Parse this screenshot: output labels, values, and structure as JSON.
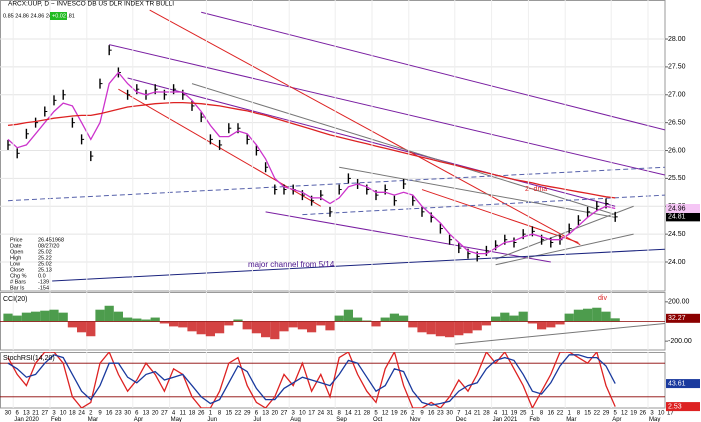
{
  "header": {
    "title": "ARCX:UUP, D ~ INVESCO DB US DLR INDEX TR BULLI",
    "quote": "0.85 24.86 24.86 24.81 24.81",
    "change": "+0.02"
  },
  "info_box": [
    [
      "Price",
      "26.451968"
    ],
    [
      "Date",
      "08/27/20"
    ],
    [
      "Open",
      "25.02"
    ],
    [
      "High",
      "25.22"
    ],
    [
      "Low",
      "25.02"
    ],
    [
      "Close",
      "25.13"
    ],
    [
      "Chg %",
      "0.0"
    ],
    [
      "# Bars",
      "-139"
    ],
    [
      "Bar Is",
      "-154"
    ]
  ],
  "chart_data": [
    {
      "type": "line",
      "categories": [
        "30",
        "6",
        "13",
        "21",
        "27",
        "3",
        "10",
        "18",
        "24",
        "2",
        "9",
        "16",
        "23",
        "30",
        "6",
        "13",
        "20",
        "27",
        "4",
        "11",
        "18",
        "26",
        "1",
        "8",
        "15",
        "22",
        "29",
        "6",
        "13",
        "20",
        "27",
        "3",
        "10",
        "17",
        "24",
        "31",
        "8",
        "14",
        "21",
        "28",
        "5",
        "12",
        "19",
        "26",
        "2",
        "9",
        "16",
        "23",
        "30",
        "7",
        "14",
        "21",
        "28",
        "4",
        "11",
        "19",
        "25",
        "1",
        "8",
        "16",
        "22",
        "1",
        "8",
        "15",
        "22",
        "29",
        "5",
        "12",
        "19",
        "26",
        "3",
        "10",
        "17"
      ],
      "months": [
        null,
        "Jan 2020",
        null,
        null,
        null,
        "Feb",
        null,
        null,
        null,
        "Mar",
        null,
        null,
        null,
        null,
        "Apr",
        null,
        null,
        null,
        "May",
        null,
        null,
        null,
        "Jun",
        null,
        null,
        null,
        null,
        "Jul",
        null,
        null,
        null,
        "Aug",
        null,
        null,
        null,
        null,
        "Sep",
        null,
        null,
        null,
        "Oct",
        null,
        null,
        null,
        "Nov",
        null,
        null,
        null,
        null,
        "Dec",
        null,
        null,
        null,
        "Jan 2021",
        null,
        null,
        null,
        "Feb",
        null,
        null,
        null,
        "Mar",
        null,
        null,
        null,
        null,
        "Apr",
        null,
        null,
        null,
        "May",
        null,
        null
      ],
      "series": [
        {
          "name": "Close",
          "color": "#000000",
          "style": "bars",
          "tag": true,
          "values": [
            26.1,
            25.95,
            26.3,
            26.5,
            26.7,
            26.9,
            27.0,
            26.5,
            26.2,
            25.9,
            27.2,
            27.8,
            27.4,
            27.0,
            27.1,
            27.0,
            27.1,
            27.0,
            27.1,
            27.0,
            26.8,
            26.6,
            26.2,
            26.1,
            26.4,
            26.4,
            26.2,
            26.0,
            25.7,
            25.3,
            25.3,
            25.3,
            25.2,
            25.1,
            25.2,
            24.9,
            25.3,
            25.5,
            25.4,
            25.3,
            25.2,
            25.3,
            25.1,
            25.4,
            25.1,
            24.9,
            24.8,
            24.6,
            24.4,
            24.25,
            24.15,
            24.1,
            24.2,
            24.3,
            24.4,
            24.35,
            24.5,
            24.55,
            24.4,
            24.35,
            24.4,
            24.6,
            24.75,
            24.9,
            25.0,
            25.05,
            24.81,
            null,
            null,
            null,
            null,
            null,
            null
          ]
        },
        {
          "name": "MA short",
          "color": "#cc33cc",
          "style": "line",
          "tag": true,
          "values": [
            26.2,
            26.05,
            26.1,
            26.3,
            26.5,
            26.7,
            26.85,
            26.8,
            26.5,
            26.2,
            26.5,
            27.2,
            27.4,
            27.2,
            27.05,
            27.0,
            27.05,
            27.05,
            27.05,
            27.05,
            26.9,
            26.7,
            26.45,
            26.25,
            26.25,
            26.35,
            26.3,
            26.1,
            25.85,
            25.5,
            25.35,
            25.3,
            25.25,
            25.15,
            25.15,
            25.05,
            25.15,
            25.35,
            25.4,
            25.35,
            25.25,
            25.25,
            25.2,
            25.25,
            25.2,
            25.0,
            24.85,
            24.7,
            24.5,
            24.35,
            24.2,
            24.15,
            24.15,
            24.25,
            24.35,
            24.38,
            24.45,
            24.5,
            24.45,
            24.4,
            24.4,
            24.5,
            24.65,
            24.8,
            24.92,
            25.0,
            24.96,
            null,
            null,
            null,
            null,
            null,
            null
          ]
        },
        {
          "name": "MA long",
          "color": "#dd2222",
          "style": "line",
          "tag": false,
          "values": [
            26.45,
            26.47,
            26.5,
            26.52,
            26.55,
            26.58,
            26.6,
            26.62,
            26.63,
            26.63,
            26.66,
            26.7,
            26.74,
            26.78,
            26.8,
            26.82,
            26.84,
            26.85,
            26.86,
            26.86,
            26.85,
            26.84,
            26.82,
            26.8,
            26.77,
            26.74,
            26.71,
            26.67,
            26.63,
            26.58,
            26.53,
            26.48,
            26.43,
            26.38,
            26.33,
            26.28,
            26.24,
            26.2,
            26.16,
            26.12,
            26.08,
            26.04,
            26.0,
            25.96,
            25.92,
            25.88,
            25.84,
            25.8,
            25.76,
            25.72,
            25.68,
            25.64,
            25.6,
            25.56,
            25.52,
            25.48,
            25.45,
            25.42,
            25.38,
            25.35,
            25.32,
            25.29,
            25.26,
            25.23,
            25.2,
            25.17,
            25.15,
            null,
            null,
            null,
            null,
            null,
            null
          ]
        }
      ],
      "ylim": [
        23.48,
        28.7
      ],
      "yticks": [
        {
          "value": 28,
          "label": "28.00"
        },
        {
          "value": 27.5,
          "label": "27.50"
        },
        {
          "value": 27,
          "label": "27.00"
        },
        {
          "value": 26.5,
          "label": "26.50"
        },
        {
          "value": 26,
          "label": "26.00"
        },
        {
          "value": 25.5,
          "label": "25.50"
        },
        {
          "value": 25,
          "label": "25.00"
        },
        {
          "value": 24.5,
          "label": "24.50"
        },
        {
          "value": 24,
          "label": "24.00"
        }
      ],
      "grid": true,
      "trendlines": [
        {
          "color": "#7a1fa2",
          "dashed": false,
          "points": [
            [
              21,
              28.48
            ],
            [
              71.4,
              26.37
            ]
          ]
        },
        {
          "color": "#7a1fa2",
          "dashed": false,
          "points": [
            [
              11,
              27.9
            ],
            [
              71.4,
              25.56
            ]
          ]
        },
        {
          "color": "#7a1fa2",
          "dashed": false,
          "points": [
            [
              13,
              27.3
            ],
            [
              66,
              25.0
            ]
          ]
        },
        {
          "color": "#7a1fa2",
          "dashed": false,
          "points": [
            [
              28,
              24.9
            ],
            [
              59,
              24.0
            ]
          ]
        },
        {
          "color": "#dd2222",
          "dashed": false,
          "points": [
            [
              15.4,
              28.52
            ],
            [
              62.2,
              24.31
            ]
          ]
        },
        {
          "color": "#dd2222",
          "dashed": false,
          "points": [
            [
              12,
              27.1
            ],
            [
              34,
              25.0
            ]
          ]
        },
        {
          "color": "#dd2222",
          "dashed": false,
          "points": [
            [
              45,
              25.3
            ],
            [
              62,
              24.35
            ]
          ]
        },
        {
          "color": "#777777",
          "dashed": false,
          "points": [
            [
              36,
              25.7
            ],
            [
              66,
              24.8
            ]
          ]
        },
        {
          "color": "#777777",
          "dashed": false,
          "points": [
            [
              20,
              27.2
            ],
            [
              66,
              24.85
            ]
          ]
        },
        {
          "color": "#777777",
          "dashed": false,
          "points": [
            [
              53,
              24.05
            ],
            [
              68,
              25.0
            ]
          ]
        },
        {
          "color": "#777777",
          "dashed": false,
          "points": [
            [
              53,
              23.95
            ],
            [
              68,
              24.5
            ]
          ]
        },
        {
          "color": "#5560aa",
          "dashed": true,
          "points": [
            [
              0,
              25.1
            ],
            [
              71.4,
              25.7
            ]
          ]
        },
        {
          "color": "#5560aa",
          "dashed": true,
          "points": [
            [
              32,
              24.85
            ],
            [
              71.4,
              25.2
            ]
          ]
        },
        {
          "color": "#1a237e",
          "dashed": false,
          "points": [
            [
              4.8,
              23.66
            ],
            [
              71.4,
              24.23
            ]
          ]
        }
      ],
      "annotations": [
        "major channel from 5/14",
        "2--dma"
      ]
    },
    {
      "type": "histogram",
      "title": "CCI(20)",
      "color_up": "#2e8b2e",
      "color_down": "#cc2222",
      "tag": true,
      "values": [
        80,
        60,
        90,
        100,
        110,
        120,
        90,
        -60,
        -110,
        -150,
        120,
        160,
        100,
        40,
        30,
        20,
        40,
        -20,
        -50,
        -60,
        -100,
        -130,
        -150,
        -120,
        -40,
        20,
        -80,
        -120,
        -160,
        -180,
        -100,
        -60,
        -80,
        -110,
        -40,
        -90,
        60,
        120,
        40,
        10,
        -50,
        40,
        80,
        60,
        -60,
        -110,
        -130,
        -150,
        -160,
        -140,
        -120,
        -90,
        -40,
        50,
        90,
        60,
        100,
        -20,
        -80,
        -60,
        -30,
        80,
        120,
        130,
        140,
        100,
        32.27,
        null,
        null,
        null,
        null,
        null,
        null
      ],
      "ylim": [
        -290,
        300
      ],
      "yticks": [
        {
          "value": 200,
          "label": "200.00"
        },
        {
          "value": -200,
          "label": "-200.00"
        }
      ],
      "ref_lines": [
        0
      ],
      "trendlines": [
        {
          "color": "#777777",
          "dashed": false,
          "points": [
            [
              48.6,
              -230
            ],
            [
              71.4,
              -20
            ]
          ]
        }
      ],
      "annotations": [
        "div"
      ]
    },
    {
      "type": "line",
      "title": "StochRSI(14,20)",
      "series": [
        {
          "name": "StochRSI",
          "color": "#dd2222",
          "tag": true,
          "values": [
            90,
            60,
            40,
            80,
            100,
            100,
            80,
            20,
            0,
            10,
            80,
            100,
            60,
            30,
            50,
            80,
            60,
            30,
            70,
            60,
            20,
            0,
            0,
            30,
            80,
            90,
            40,
            10,
            0,
            20,
            60,
            40,
            80,
            30,
            60,
            20,
            90,
            100,
            60,
            30,
            10,
            70,
            100,
            40,
            0,
            0,
            10,
            0,
            20,
            50,
            30,
            60,
            100,
            80,
            100,
            70,
            40,
            0,
            30,
            60,
            100,
            100,
            90,
            80,
            100,
            40,
            2.53,
            null,
            null,
            null,
            null,
            null,
            null
          ]
        },
        {
          "name": "Signal",
          "color": "#1a3a9e",
          "tag": true,
          "values": [
            80,
            70,
            55,
            60,
            80,
            95,
            90,
            60,
            30,
            15,
            40,
            80,
            80,
            55,
            45,
            60,
            65,
            50,
            55,
            60,
            40,
            20,
            8,
            15,
            45,
            75,
            65,
            35,
            15,
            15,
            35,
            45,
            55,
            50,
            45,
            40,
            60,
            85,
            80,
            55,
            30,
            40,
            70,
            65,
            30,
            10,
            5,
            8,
            12,
            30,
            40,
            45,
            70,
            85,
            90,
            85,
            60,
            30,
            25,
            45,
            75,
            95,
            95,
            90,
            90,
            75,
            43.61,
            null,
            null,
            null,
            null,
            null,
            null
          ]
        }
      ],
      "ylim": [
        0,
        100
      ],
      "ref_lines": [
        80,
        20
      ]
    }
  ]
}
